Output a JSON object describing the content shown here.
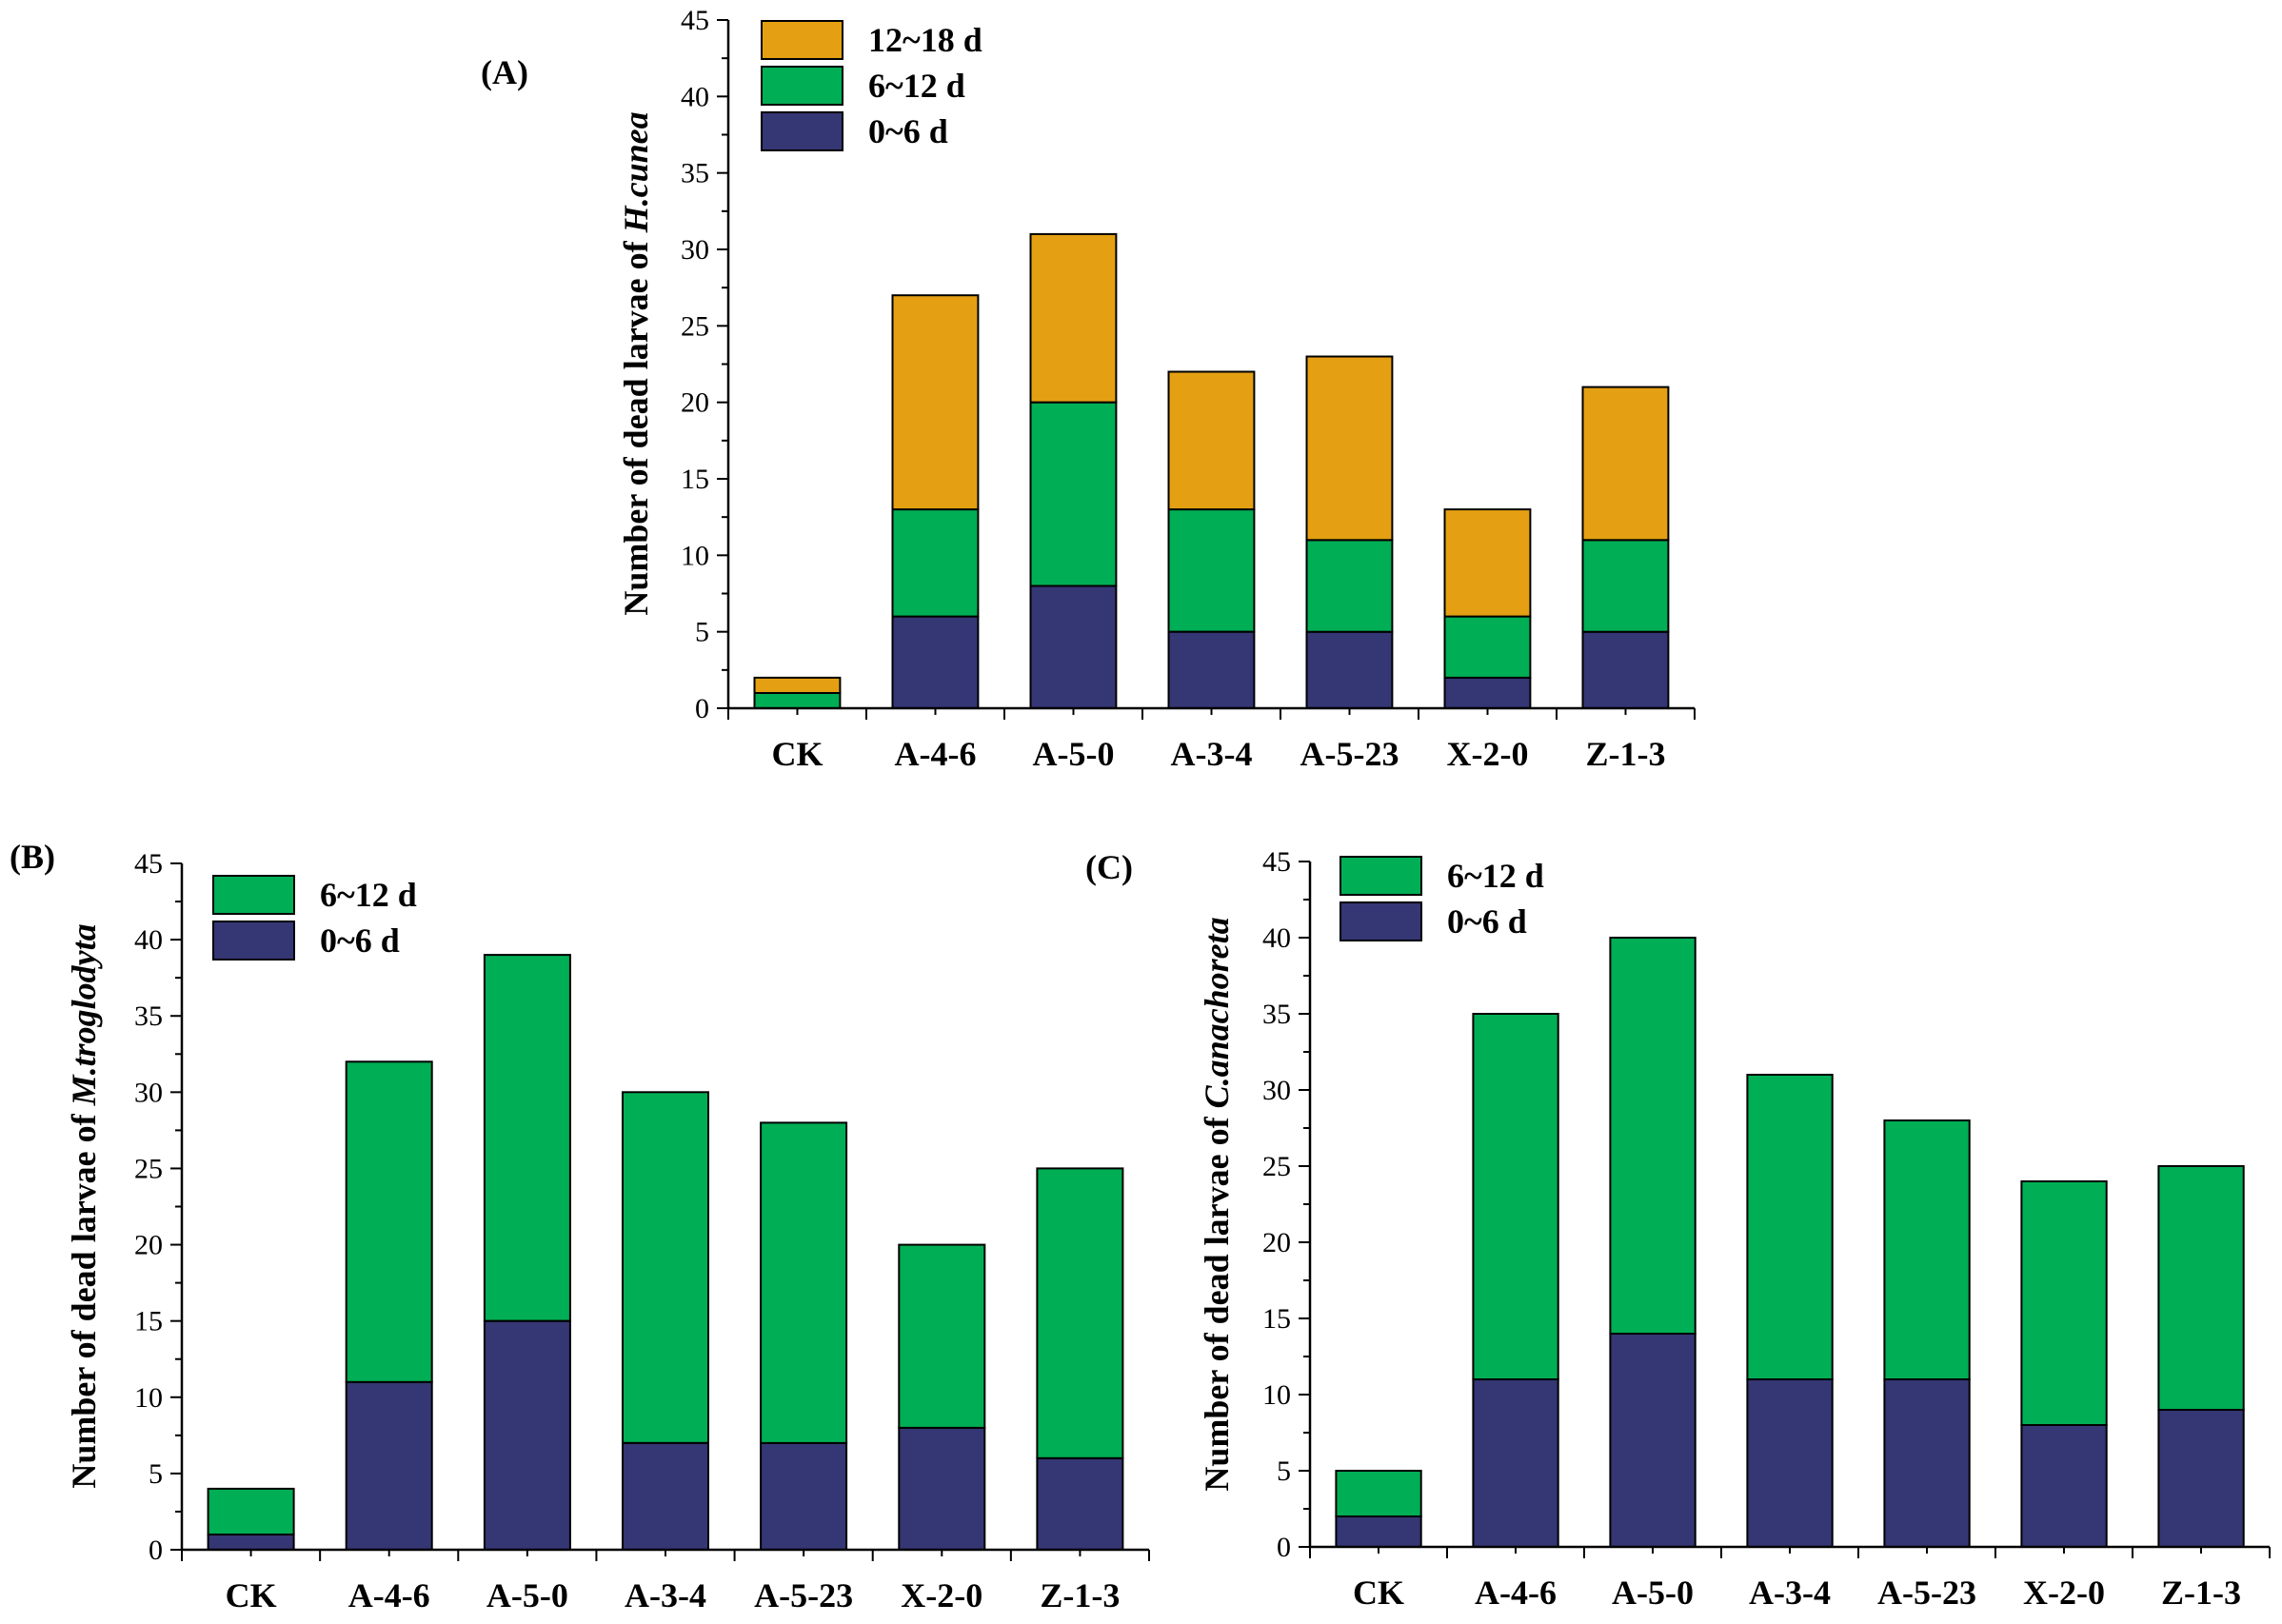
{
  "colors": {
    "0~6 d": "#353674",
    "6~12 d": "#00ae55",
    "12~18 d": "#e4a012",
    "axis": "#000000"
  },
  "chart_data": [
    {
      "id": "A",
      "type": "bar",
      "stacked": true,
      "panel_label": "(A)",
      "ylabel_prefix": "Number of dead larvae of ",
      "ylabel_species": "H.cunea",
      "xlabel": "",
      "ylim": [
        0,
        45
      ],
      "yticks": [
        0,
        5,
        10,
        15,
        20,
        25,
        30,
        35,
        40,
        45
      ],
      "categories": [
        "CK",
        "A-4-6",
        "A-5-0",
        "A-3-4",
        "A-5-23",
        "X-2-0",
        "Z-1-3"
      ],
      "series": [
        {
          "name": "0~6 d",
          "values": [
            0,
            6,
            8,
            5,
            5,
            2,
            5
          ]
        },
        {
          "name": "6~12 d",
          "values": [
            1,
            7,
            12,
            8,
            6,
            4,
            6
          ]
        },
        {
          "name": "12~18 d",
          "values": [
            1,
            14,
            11,
            9,
            12,
            7,
            10
          ]
        }
      ],
      "legend_order": [
        "12~18 d",
        "6~12 d",
        "0~6 d"
      ],
      "legend_position": "top-left"
    },
    {
      "id": "B",
      "type": "bar",
      "stacked": true,
      "panel_label": "(B)",
      "ylabel_prefix": "Number of dead larvae of ",
      "ylabel_species": "M.troglodyta",
      "xlabel": "",
      "ylim": [
        0,
        45
      ],
      "yticks": [
        0,
        5,
        10,
        15,
        20,
        25,
        30,
        35,
        40,
        45
      ],
      "categories": [
        "CK",
        "A-4-6",
        "A-5-0",
        "A-3-4",
        "A-5-23",
        "X-2-0",
        "Z-1-3"
      ],
      "series": [
        {
          "name": "0~6 d",
          "values": [
            1,
            11,
            15,
            7,
            7,
            8,
            6
          ]
        },
        {
          "name": "6~12 d",
          "values": [
            3,
            21,
            24,
            23,
            21,
            12,
            19
          ]
        }
      ],
      "legend_order": [
        "6~12 d",
        "0~6 d"
      ],
      "legend_position": "top-left"
    },
    {
      "id": "C",
      "type": "bar",
      "stacked": true,
      "panel_label": "(C)",
      "ylabel_prefix": "Number of dead larvae of ",
      "ylabel_species": "C.anachoreta",
      "xlabel": "",
      "ylim": [
        0,
        45
      ],
      "yticks": [
        0,
        5,
        10,
        15,
        20,
        25,
        30,
        35,
        40,
        45
      ],
      "categories": [
        "CK",
        "A-4-6",
        "A-5-0",
        "A-3-4",
        "A-5-23",
        "X-2-0",
        "Z-1-3"
      ],
      "series": [
        {
          "name": "0~6 d",
          "values": [
            2,
            11,
            14,
            11,
            11,
            8,
            9
          ]
        },
        {
          "name": "6~12 d",
          "values": [
            3,
            24,
            26,
            20,
            17,
            16,
            16
          ]
        }
      ],
      "legend_order": [
        "6~12 d",
        "0~6 d"
      ],
      "legend_position": "top-left"
    }
  ]
}
